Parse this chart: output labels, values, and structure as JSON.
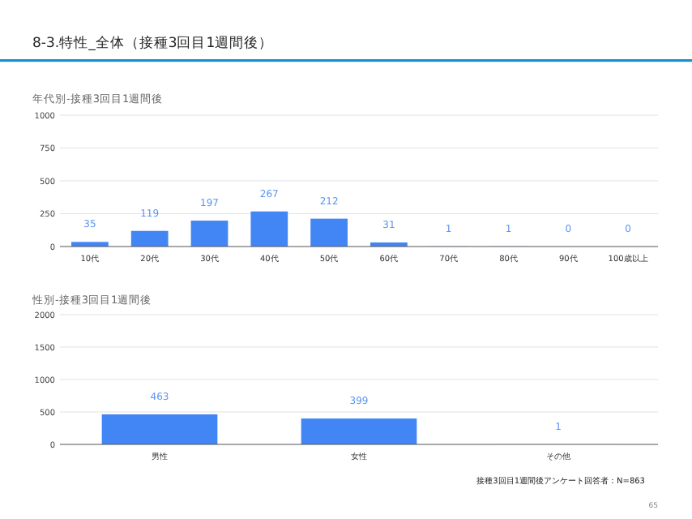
{
  "chart_data": [
    {
      "type": "bar",
      "title": "8-3.特性_全体（接種3回目1週間後）",
      "subtitle": "年代別-接種3回目1週間後",
      "categories": [
        "10代",
        "20代",
        "30代",
        "40代",
        "50代",
        "60代",
        "70代",
        "80代",
        "90代",
        "100歳以上"
      ],
      "values": [
        35,
        119,
        197,
        267,
        212,
        31,
        1,
        1,
        0,
        0
      ],
      "color": "#4285f4",
      "ylim": [
        0,
        1000
      ],
      "yticks": [
        0,
        250,
        500,
        750,
        1000
      ],
      "grid": "y",
      "data_labels": true
    },
    {
      "type": "bar",
      "subtitle": "性別-接種3回目1週間後",
      "categories": [
        "男性",
        "女性",
        "その他"
      ],
      "values": [
        463,
        399,
        1
      ],
      "color": "#4285f4",
      "ylim": [
        0,
        2000
      ],
      "yticks": [
        0,
        500,
        1000,
        1500,
        2000
      ],
      "grid": "y",
      "data_labels": true,
      "annotations": [
        "接種3回目1週間後アンケート回答者：N=863",
        "65"
      ]
    }
  ]
}
